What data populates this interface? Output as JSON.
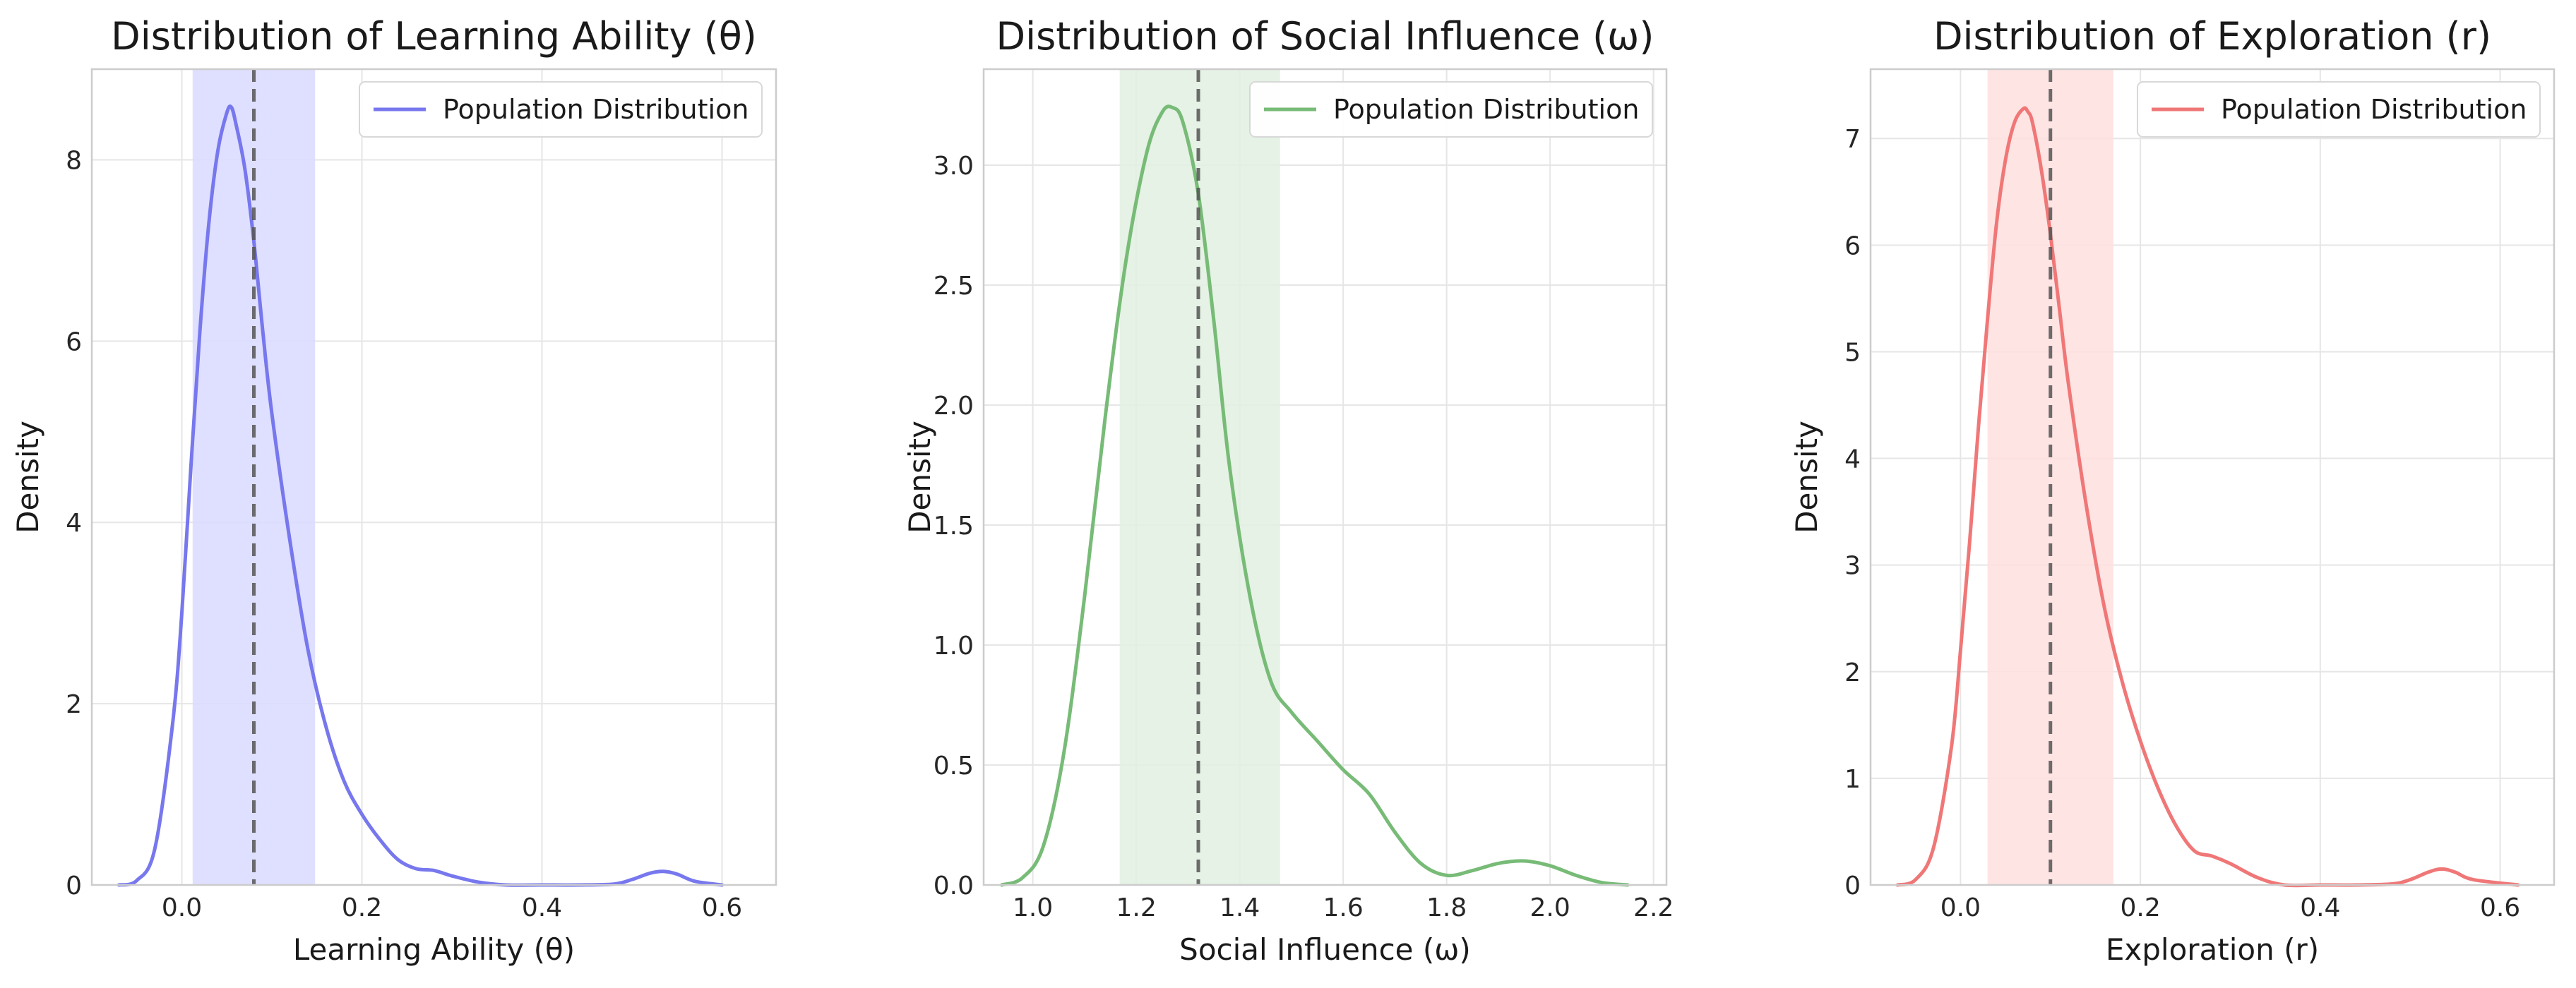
{
  "chart_data": [
    {
      "type": "line",
      "title": "Distribution of Learning Ability (θ)",
      "xlabel": "Learning Ability (θ)",
      "ylabel": "Density",
      "xlim": [
        -0.1,
        0.66
      ],
      "ylim": [
        0,
        9.0
      ],
      "xticks": [
        0.0,
        0.2,
        0.4,
        0.6
      ],
      "xtick_labels": [
        "0.0",
        "0.2",
        "0.4",
        "0.6"
      ],
      "yticks": [
        0,
        2,
        4,
        6,
        8
      ],
      "ytick_labels": [
        "0",
        "2",
        "4",
        "6",
        "8"
      ],
      "grid": true,
      "legend": "upper right",
      "color": "#7777ee",
      "band": [
        0.012,
        0.148
      ],
      "band_color": "#d9d9ff",
      "vline": 0.08,
      "series": [
        {
          "name": "Population Distribution",
          "x": [
            -0.07,
            -0.05,
            -0.03,
            -0.01,
            0.0,
            0.01,
            0.02,
            0.03,
            0.04,
            0.05,
            0.055,
            0.06,
            0.07,
            0.08,
            0.09,
            0.1,
            0.12,
            0.14,
            0.16,
            0.18,
            0.2,
            0.22,
            0.24,
            0.26,
            0.28,
            0.3,
            0.33,
            0.36,
            0.4,
            0.44,
            0.48,
            0.5,
            0.52,
            0.535,
            0.55,
            0.57,
            0.6
          ],
          "y": [
            0.0,
            0.05,
            0.4,
            1.8,
            3.0,
            4.6,
            6.1,
            7.3,
            8.1,
            8.52,
            8.58,
            8.4,
            7.9,
            7.1,
            6.1,
            5.2,
            3.8,
            2.6,
            1.75,
            1.15,
            0.78,
            0.5,
            0.28,
            0.18,
            0.16,
            0.1,
            0.03,
            0.0,
            0.0,
            0.0,
            0.01,
            0.06,
            0.13,
            0.15,
            0.12,
            0.04,
            0.0
          ]
        }
      ]
    },
    {
      "type": "line",
      "title": "Distribution of Social Influence (ω)",
      "xlabel": "Social Influence (ω)",
      "ylabel": "Density",
      "xlim": [
        0.905,
        2.225
      ],
      "ylim": [
        0,
        3.4
      ],
      "xticks": [
        1.0,
        1.2,
        1.4,
        1.6,
        1.8,
        2.0,
        2.2
      ],
      "xtick_labels": [
        "1.0",
        "1.2",
        "1.4",
        "1.6",
        "1.8",
        "2.0",
        "2.2"
      ],
      "yticks": [
        0.0,
        0.5,
        1.0,
        1.5,
        2.0,
        2.5,
        3.0
      ],
      "ytick_labels": [
        "0.0",
        "0.5",
        "1.0",
        "1.5",
        "2.0",
        "2.5",
        "3.0"
      ],
      "grid": true,
      "legend": "upper right",
      "color": "#77bb77",
      "band": [
        1.168,
        1.478
      ],
      "band_color": "#e0f0e0",
      "vline": 1.32,
      "series": [
        {
          "name": "Population Distribution",
          "x": [
            0.94,
            0.98,
            1.02,
            1.06,
            1.1,
            1.14,
            1.18,
            1.22,
            1.25,
            1.27,
            1.29,
            1.32,
            1.35,
            1.38,
            1.42,
            1.46,
            1.5,
            1.55,
            1.6,
            1.65,
            1.7,
            1.75,
            1.8,
            1.85,
            1.9,
            1.95,
            2.0,
            2.05,
            2.1,
            2.15
          ],
          "y": [
            0.0,
            0.03,
            0.16,
            0.55,
            1.2,
            1.95,
            2.6,
            3.05,
            3.22,
            3.24,
            3.18,
            2.88,
            2.35,
            1.75,
            1.2,
            0.85,
            0.72,
            0.6,
            0.48,
            0.38,
            0.22,
            0.09,
            0.04,
            0.06,
            0.09,
            0.1,
            0.08,
            0.04,
            0.01,
            0.0
          ]
        }
      ]
    },
    {
      "type": "line",
      "title": "Distribution of Exploration (r)",
      "xlabel": "Exploration (r)",
      "ylabel": "Density",
      "xlim": [
        -0.1,
        0.66
      ],
      "ylim": [
        0,
        7.65
      ],
      "xticks": [
        0.0,
        0.2,
        0.4,
        0.6
      ],
      "xtick_labels": [
        "0.0",
        "0.2",
        "0.4",
        "0.6"
      ],
      "yticks": [
        0,
        1,
        2,
        3,
        4,
        5,
        6,
        7
      ],
      "ytick_labels": [
        "0",
        "1",
        "2",
        "3",
        "4",
        "5",
        "6",
        "7"
      ],
      "grid": true,
      "legend": "upper right",
      "color": "#f07777",
      "band": [
        0.03,
        0.17
      ],
      "band_color": "#ffdfdf",
      "vline": 0.1,
      "series": [
        {
          "name": "Population Distribution",
          "x": [
            -0.07,
            -0.05,
            -0.03,
            -0.01,
            0.0,
            0.01,
            0.02,
            0.03,
            0.04,
            0.05,
            0.06,
            0.07,
            0.075,
            0.08,
            0.09,
            0.1,
            0.11,
            0.12,
            0.14,
            0.16,
            0.18,
            0.2,
            0.22,
            0.24,
            0.26,
            0.28,
            0.3,
            0.33,
            0.36,
            0.4,
            0.44,
            0.48,
            0.5,
            0.52,
            0.535,
            0.55,
            0.57,
            0.62
          ],
          "y": [
            0.0,
            0.05,
            0.35,
            1.3,
            2.2,
            3.2,
            4.3,
            5.3,
            6.2,
            6.8,
            7.15,
            7.28,
            7.25,
            7.15,
            6.7,
            6.1,
            5.4,
            4.7,
            3.55,
            2.6,
            1.9,
            1.35,
            0.9,
            0.55,
            0.32,
            0.27,
            0.2,
            0.07,
            0.0,
            0.0,
            0.0,
            0.01,
            0.05,
            0.12,
            0.15,
            0.12,
            0.05,
            0.0
          ]
        }
      ]
    }
  ]
}
